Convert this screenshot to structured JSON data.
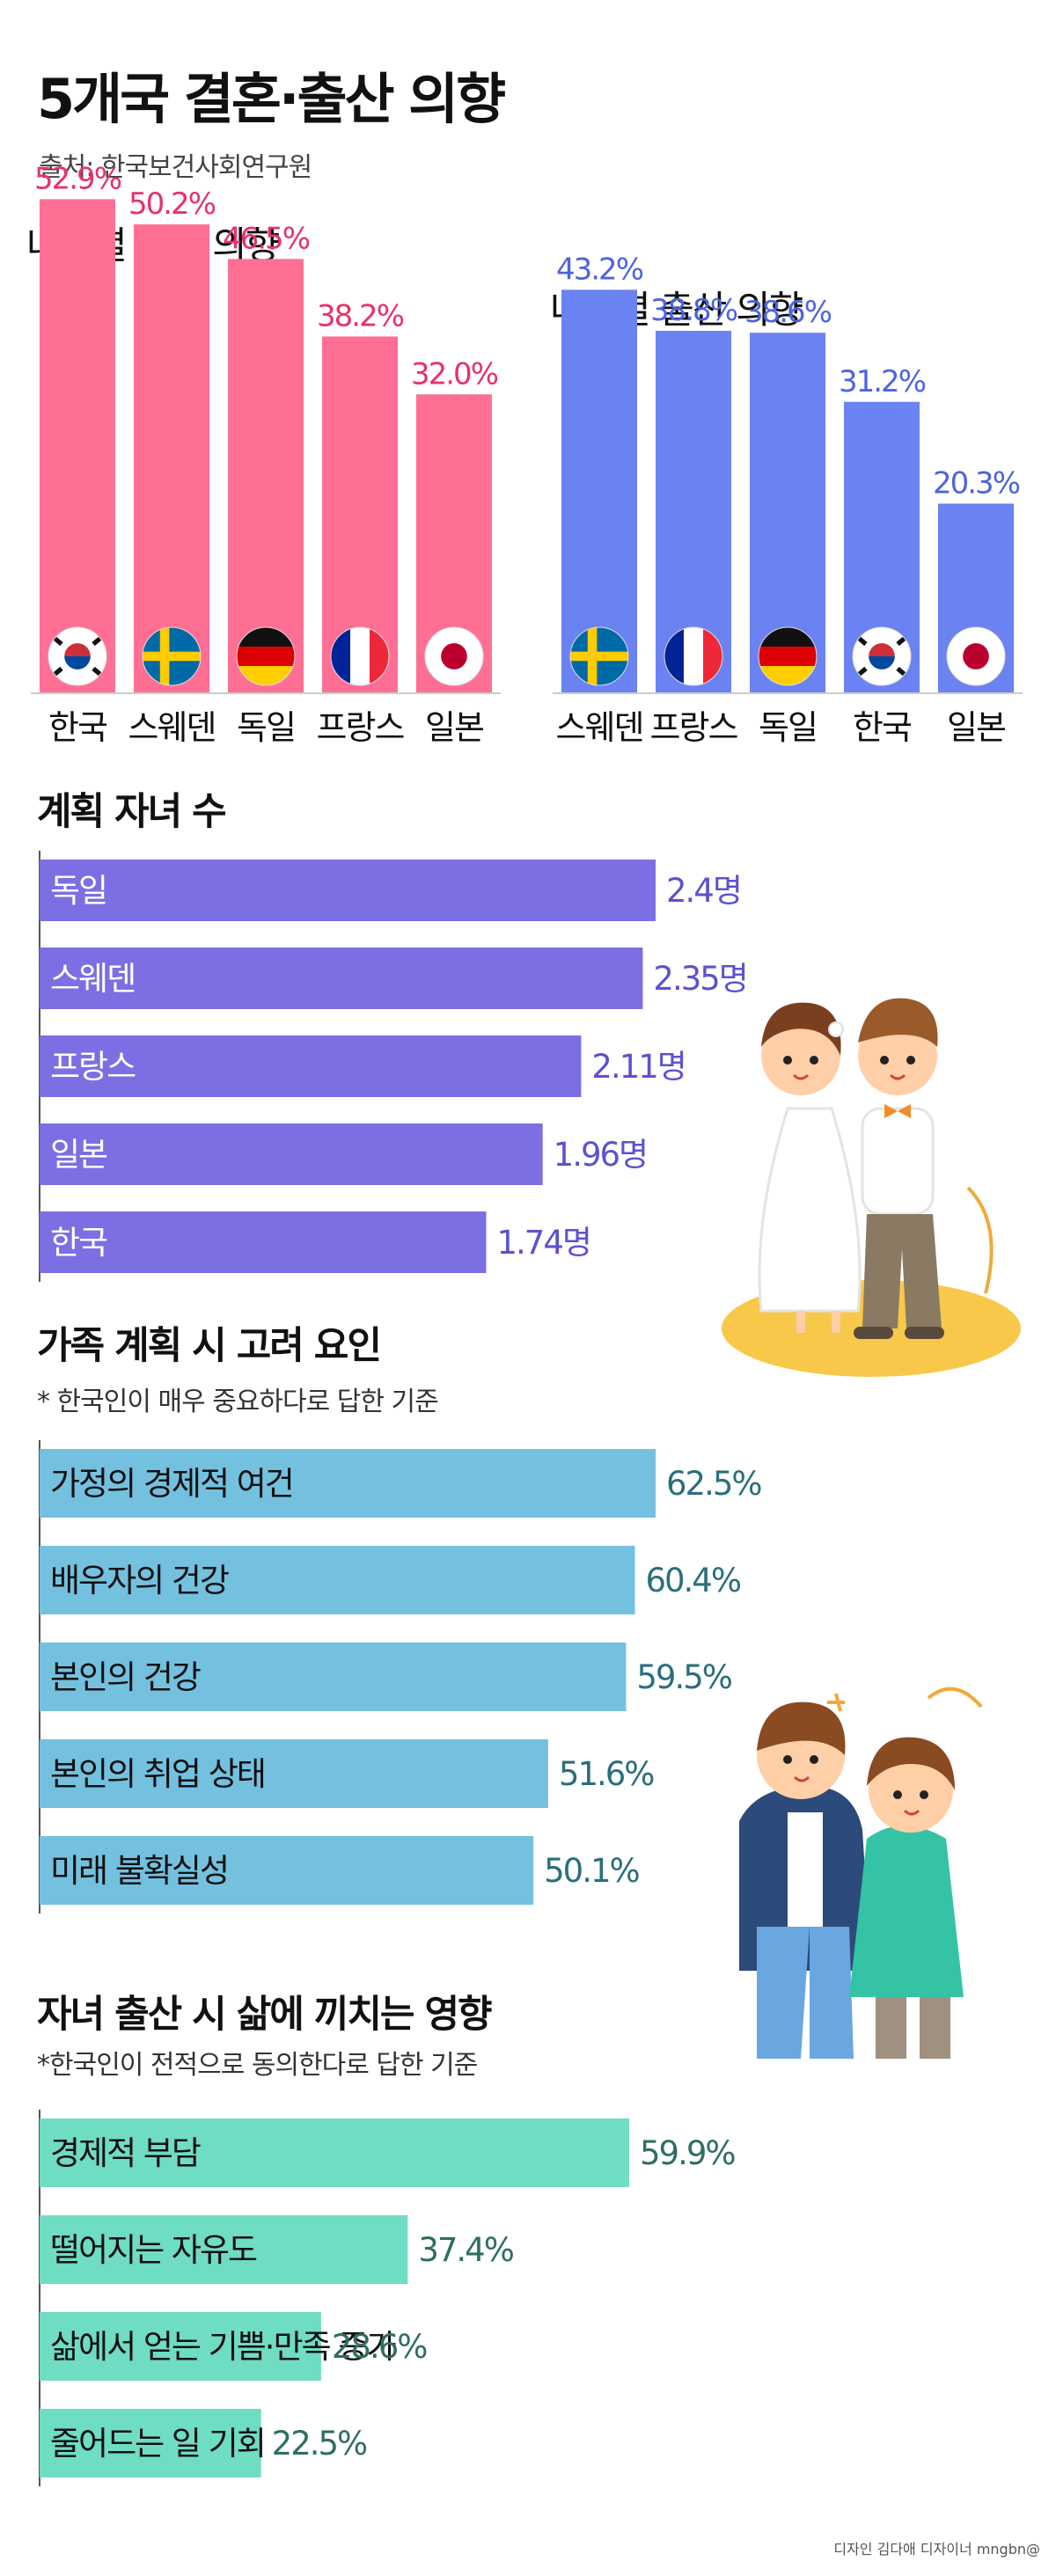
{
  "header": {
    "title": "5개국 결혼·출산 의향",
    "source": "출처: 한국보건사회연구원"
  },
  "sections": {
    "marriage_title": "나라별 결혼 의향",
    "birth_title": "나라별 출산 의향",
    "children_title": "계획 자녀 수",
    "factors_title": "가족 계획 시 고려 요인",
    "factors_note": "* 한국인이 매우 중요하다로 답한 기준",
    "impact_title": "자녀 출산 시 삶에 끼치는 영향",
    "impact_note": "*한국인이 전적으로 동의한다로 답한 기준"
  },
  "credit": "디자인 김다애 디자이너 mngbn@",
  "colors": {
    "marriage": "#ff6f94",
    "marriage_label": "#e6336a",
    "birth": "#6b82f2",
    "birth_label": "#4e63e0",
    "children": "#7b6fe3",
    "children_label": "#5b52cf",
    "factors": "#74c0df",
    "factors_label": "#2a6f7c",
    "impact": "#6fdcc4",
    "impact_label": "#2f6e63"
  },
  "chart_data": [
    {
      "type": "bar",
      "title": "나라별 결혼 의향",
      "categories": [
        "한국",
        "스웨덴",
        "독일",
        "프랑스",
        "일본"
      ],
      "values": [
        52.9,
        50.2,
        46.5,
        38.2,
        32.0
      ],
      "labels": [
        "52.9%",
        "50.2%",
        "46.5%",
        "38.2%",
        "32.0%"
      ],
      "flags": [
        "korea-flag",
        "sweden-flag",
        "germany-flag",
        "france-flag",
        "japan-flag"
      ],
      "ylim": [
        0,
        60
      ]
    },
    {
      "type": "bar",
      "title": "나라별 출산 의향",
      "categories": [
        "스웨덴",
        "프랑스",
        "독일",
        "한국",
        "일본"
      ],
      "values": [
        43.2,
        38.8,
        38.6,
        31.2,
        20.3
      ],
      "labels": [
        "43.2%",
        "38.8%",
        "38.6%",
        "31.2%",
        "20.3%"
      ],
      "flags": [
        "sweden-flag",
        "france-flag",
        "germany-flag",
        "korea-flag",
        "japan-flag"
      ],
      "ylim": [
        0,
        60
      ]
    },
    {
      "type": "bar",
      "orientation": "horizontal",
      "title": "계획 자녀 수",
      "categories": [
        "독일",
        "스웨덴",
        "프랑스",
        "일본",
        "한국"
      ],
      "values": [
        2.4,
        2.35,
        2.11,
        1.96,
        1.74
      ],
      "labels": [
        "2.4명",
        "2.35명",
        "2.11명",
        "1.96명",
        "1.74명"
      ],
      "xlim": [
        0,
        2.4
      ]
    },
    {
      "type": "bar",
      "orientation": "horizontal",
      "title": "가족 계획 시 고려 요인",
      "categories": [
        "가정의 경제적 여건",
        "배우자의 건강",
        "본인의 건강",
        "본인의 취업 상태",
        "미래 불확실성"
      ],
      "values": [
        62.5,
        60.4,
        59.5,
        51.6,
        50.1
      ],
      "labels": [
        "62.5%",
        "60.4%",
        "59.5%",
        "51.6%",
        "50.1%"
      ],
      "xlim": [
        0,
        62.5
      ]
    },
    {
      "type": "bar",
      "orientation": "horizontal",
      "title": "자녀 출산 시 삶에 끼치는 영향",
      "categories": [
        "경제적 부담",
        "떨어지는 자유도",
        "삶에서 얻는 기쁨·만족 증가",
        "줄어드는 일 기회"
      ],
      "values": [
        59.9,
        37.4,
        28.6,
        22.5
      ],
      "labels": [
        "59.9%",
        "37.4%",
        "28.6%",
        "22.5%"
      ],
      "xlim": [
        0,
        59.9
      ]
    }
  ]
}
